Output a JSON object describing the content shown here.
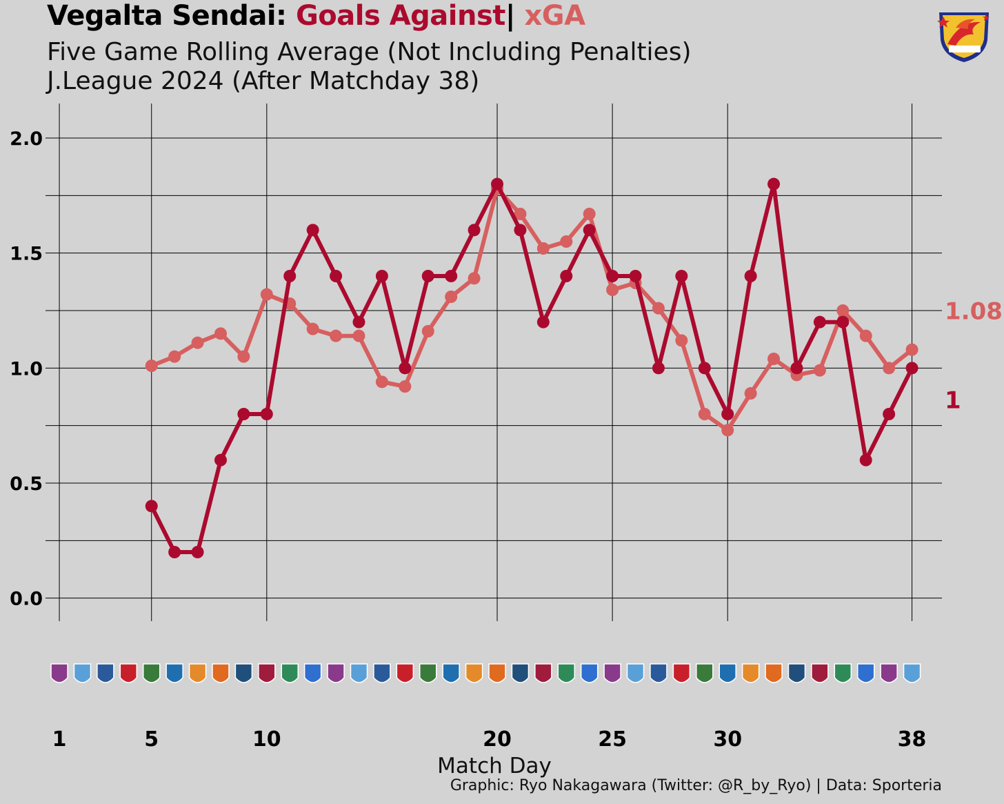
{
  "header": {
    "team": "Vegalta Sendai:",
    "ga_label": "Goals Against",
    "separator": "|",
    "xga_label": "xGA",
    "subtitle1": "Five Game Rolling Average (Not Including Penalties)",
    "subtitle2": "J.League 2024 (After Matchday 38)"
  },
  "caption": "Graphic: Ryo Nakagawara (Twitter: @R_by_Ryo) | Data: Sporteria",
  "colors": {
    "background": "#d3d3d3",
    "goals_against": "#ab0a2e",
    "xga": "#d75f5f",
    "grid": "#000000"
  },
  "logo_icon": "vegalta-sendai-crest-icon",
  "opponent_icons": [
    "opponent-crest-icon"
  ],
  "chart_data": {
    "type": "line",
    "title": "Vegalta Sendai: Goals Against | xGA",
    "xlabel": "Match Day",
    "ylabel": "",
    "xlim": [
      0.4,
      39.3
    ],
    "ylim": [
      -0.1,
      2.15
    ],
    "x_ticks": [
      1,
      5,
      10,
      20,
      25,
      30,
      38
    ],
    "y_ticks": [
      0.0,
      0.5,
      1.0,
      1.5,
      2.0
    ],
    "y_tick_labels": [
      "0.0",
      "0.5",
      "1.0",
      "1.5",
      "2.0"
    ],
    "x_gridlines": [
      1,
      5,
      10,
      20,
      25,
      30,
      38
    ],
    "y_gridlines": [
      0.0,
      0.25,
      0.5,
      0.75,
      1.0,
      1.25,
      1.5,
      1.75,
      2.0
    ],
    "series": [
      {
        "name": "xGA",
        "color": "#d75f5f",
        "end_label": "1.08",
        "x": [
          5,
          6,
          7,
          8,
          9,
          10,
          11,
          12,
          13,
          14,
          15,
          16,
          17,
          18,
          19,
          20,
          21,
          22,
          23,
          24,
          25,
          26,
          27,
          28,
          29,
          30,
          31,
          32,
          33,
          34,
          35,
          36,
          37,
          38
        ],
        "values": [
          1.01,
          1.05,
          1.11,
          1.15,
          1.05,
          1.32,
          1.28,
          1.17,
          1.14,
          1.14,
          0.94,
          0.92,
          1.16,
          1.31,
          1.39,
          1.78,
          1.67,
          1.52,
          1.55,
          1.67,
          1.34,
          1.37,
          1.26,
          1.12,
          0.8,
          0.73,
          0.89,
          1.04,
          0.97,
          0.99,
          1.25,
          1.14,
          1.0,
          1.08
        ]
      },
      {
        "name": "Goals Against",
        "color": "#ab0a2e",
        "end_label": "1",
        "x": [
          5,
          6,
          7,
          8,
          9,
          10,
          11,
          12,
          13,
          14,
          15,
          16,
          17,
          18,
          19,
          20,
          21,
          22,
          23,
          24,
          25,
          26,
          27,
          28,
          29,
          30,
          31,
          32,
          33,
          34,
          35,
          36,
          37,
          38
        ],
        "values": [
          0.4,
          0.2,
          0.2,
          0.6,
          0.8,
          0.8,
          1.4,
          1.6,
          1.4,
          1.2,
          1.4,
          1.0,
          1.4,
          1.4,
          1.6,
          1.8,
          1.6,
          1.2,
          1.4,
          1.6,
          1.4,
          1.4,
          1.0,
          1.4,
          1.0,
          0.8,
          1.4,
          1.8,
          1.0,
          1.2,
          1.2,
          0.6,
          0.8,
          1.0
        ]
      }
    ]
  }
}
